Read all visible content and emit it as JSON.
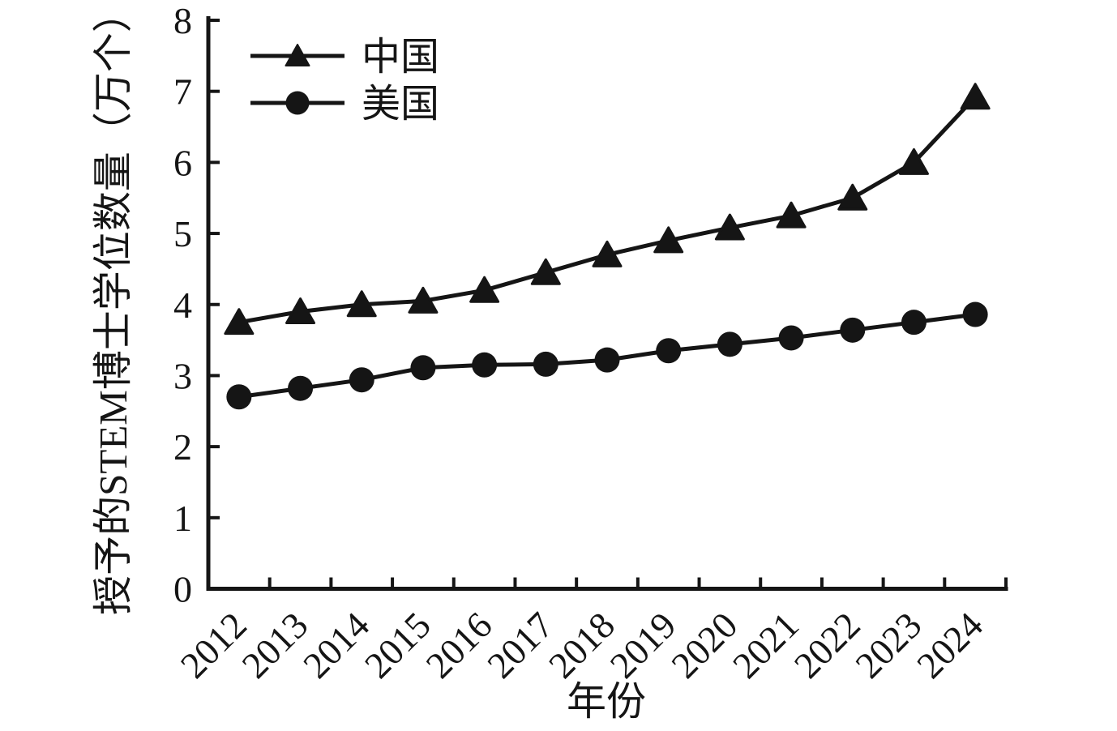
{
  "chart_data": {
    "type": "line",
    "title": "",
    "xlabel": "年份",
    "ylabel": "授予的STEM博士学位数量（万个）",
    "categories": [
      "2012",
      "2013",
      "2014",
      "2015",
      "2016",
      "2017",
      "2018",
      "2019",
      "2020",
      "2021",
      "2022",
      "2023",
      "2024"
    ],
    "series": [
      {
        "name": "中国",
        "marker": "triangle",
        "values": [
          3.75,
          3.9,
          4.0,
          4.05,
          4.2,
          4.45,
          4.7,
          4.9,
          5.08,
          5.25,
          5.5,
          6.0,
          6.92
        ]
      },
      {
        "name": "美国",
        "marker": "circle",
        "values": [
          2.7,
          2.82,
          2.94,
          3.11,
          3.15,
          3.16,
          3.22,
          3.35,
          3.44,
          3.53,
          3.64,
          3.75,
          3.86
        ]
      }
    ],
    "ylim": [
      0,
      8
    ],
    "yticks": [
      "0",
      "1",
      "2",
      "3",
      "4",
      "5",
      "6",
      "7",
      "8"
    ],
    "grid": false,
    "legend_position": "upper-left-inside",
    "ink_color": "#151515",
    "background": "#ffffff"
  }
}
